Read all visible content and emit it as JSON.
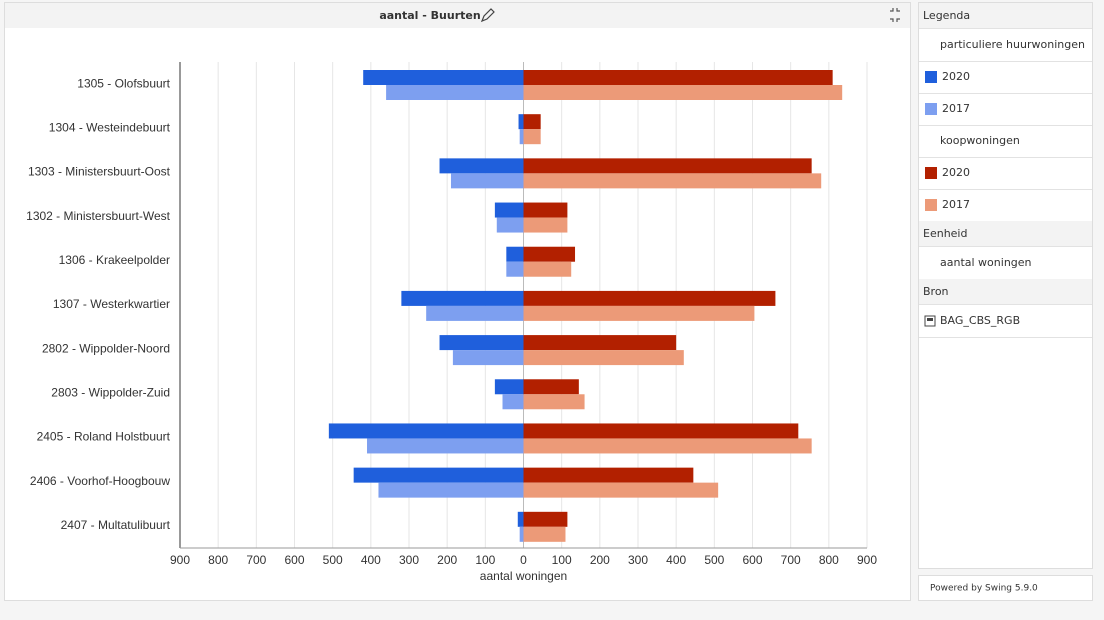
{
  "header": {
    "title": "aantal - Buurten"
  },
  "legend": {
    "title": "Legenda",
    "groups": [
      "particuliere huurwoningen",
      "koopwoningen"
    ]
  },
  "unit": {
    "title": "Eenheid",
    "value": "aantal woningen"
  },
  "source": {
    "title": "Bron",
    "value": "BAG_CBS_RGB"
  },
  "footer": "Powered by Swing 5.9.0",
  "chart_data": {
    "type": "bar",
    "orientation": "horizontal",
    "categories": [
      "1305 - Olofsbuurt",
      "1304 - Westeindebuurt",
      "1303 - Ministersbuurt-Oost",
      "1302 - Ministersbuurt-West",
      "1306 - Krakeelpolder",
      "1307 - Westerkwartier",
      "2802 - Wippolder-Noord",
      "2803 - Wippolder-Zuid",
      "2405 - Roland Holstbuurt",
      "2406 - Voorhof-Hoogbouw",
      "2407 - Multatulibuurt"
    ],
    "series": [
      {
        "name": "2020",
        "color": "#1f5fdc",
        "values": [
          -420,
          -13,
          -220,
          -75,
          -45,
          -320,
          -220,
          -75,
          -510,
          -445,
          -15
        ]
      },
      {
        "name": "2017",
        "color": "#7d9ff0",
        "values": [
          -360,
          -10,
          -190,
          -70,
          -45,
          -255,
          -185,
          -55,
          -410,
          -380,
          -10
        ]
      },
      {
        "name": "2020",
        "color": "#b22000",
        "values": [
          810,
          45,
          755,
          115,
          135,
          660,
          400,
          145,
          720,
          445,
          115
        ]
      },
      {
        "name": "2017",
        "color": "#ec9a78",
        "values": [
          835,
          45,
          780,
          115,
          125,
          605,
          420,
          160,
          755,
          510,
          110
        ]
      }
    ],
    "xlim": [
      -900,
      900
    ],
    "xticks": [
      {
        "value": -900,
        "label": "900"
      },
      {
        "value": -800,
        "label": "800"
      },
      {
        "value": -700,
        "label": "700"
      },
      {
        "value": -600,
        "label": "600"
      },
      {
        "value": -500,
        "label": "500"
      },
      {
        "value": -400,
        "label": "400"
      },
      {
        "value": -300,
        "label": "300"
      },
      {
        "value": -200,
        "label": "200"
      },
      {
        "value": -100,
        "label": "100"
      },
      0,
      100,
      200,
      300,
      400,
      500,
      600,
      700,
      800,
      900
    ],
    "xlabel": "aantal woningen",
    "grid": true
  }
}
